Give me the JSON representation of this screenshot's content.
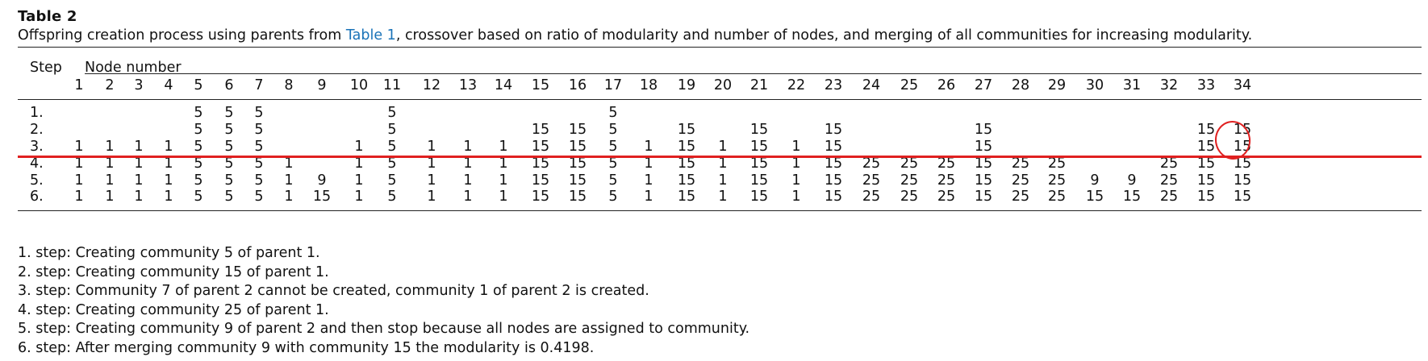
{
  "table": {
    "title": "Table 2",
    "caption_before": "Offspring creation process using parents from ",
    "caption_link": "Table 1",
    "caption_after": ", crossover based on ratio of modularity and number of nodes, and merging of all communities for increasing modularity.",
    "step_header": "Step",
    "node_header": "Node number",
    "columns": [
      "1",
      "2",
      "3",
      "4",
      "5",
      "6",
      "7",
      "8",
      "9",
      "10",
      "11",
      "12",
      "13",
      "14",
      "15",
      "16",
      "17",
      "18",
      "19",
      "20",
      "21",
      "22",
      "23",
      "24",
      "25",
      "26",
      "27",
      "28",
      "29",
      "30",
      "31",
      "32",
      "33",
      "34"
    ],
    "rows": [
      {
        "label": "1.",
        "cells": [
          "",
          "",
          "",
          "",
          "5",
          "5",
          "5",
          "",
          "",
          "",
          "5",
          "",
          "",
          "",
          "",
          "",
          "5",
          "",
          "",
          "",
          "",
          "",
          "",
          "",
          "",
          "",
          "",
          "",
          "",
          "",
          "",
          "",
          "",
          ""
        ]
      },
      {
        "label": "2.",
        "cells": [
          "",
          "",
          "",
          "",
          "5",
          "5",
          "5",
          "",
          "",
          "",
          "5",
          "",
          "",
          "",
          "15",
          "15",
          "5",
          "",
          "15",
          "",
          "15",
          "",
          "15",
          "",
          "",
          "",
          "15",
          "",
          "",
          "",
          "",
          "",
          "15",
          "15"
        ]
      },
      {
        "label": "3.",
        "cells": [
          "1",
          "1",
          "1",
          "1",
          "5",
          "5",
          "5",
          "",
          "",
          "1",
          "5",
          "1",
          "1",
          "1",
          "15",
          "15",
          "5",
          "1",
          "15",
          "1",
          "15",
          "1",
          "15",
          "",
          "",
          "",
          "15",
          "",
          "",
          "",
          "",
          "",
          "15",
          "15"
        ]
      },
      {
        "label": "4.",
        "cells": [
          "1",
          "1",
          "1",
          "1",
          "5",
          "5",
          "5",
          "1",
          "",
          "1",
          "5",
          "1",
          "1",
          "1",
          "15",
          "15",
          "5",
          "1",
          "15",
          "1",
          "15",
          "1",
          "15",
          "25",
          "25",
          "25",
          "15",
          "25",
          "25",
          "",
          "",
          "25",
          "15",
          "15"
        ]
      },
      {
        "label": "5.",
        "cells": [
          "1",
          "1",
          "1",
          "1",
          "5",
          "5",
          "5",
          "1",
          "9",
          "1",
          "5",
          "1",
          "1",
          "1",
          "15",
          "15",
          "5",
          "1",
          "15",
          "1",
          "15",
          "1",
          "15",
          "25",
          "25",
          "25",
          "15",
          "25",
          "25",
          "9",
          "9",
          "25",
          "15",
          "15"
        ]
      },
      {
        "label": "6.",
        "cells": [
          "1",
          "1",
          "1",
          "1",
          "5",
          "5",
          "5",
          "1",
          "15",
          "1",
          "5",
          "1",
          "1",
          "1",
          "15",
          "15",
          "5",
          "1",
          "15",
          "1",
          "15",
          "1",
          "15",
          "25",
          "25",
          "25",
          "15",
          "25",
          "25",
          "15",
          "15",
          "25",
          "15",
          "15"
        ]
      }
    ]
  },
  "footnotes": [
    "1. step: Creating community 5 of parent 1.",
    "2. step: Creating community 15 of parent 1.",
    "3. step: Community 7 of parent 2 cannot be created, community 1 of parent 2 is created.",
    "4. step: Creating community 25 of parent 1.",
    "5. step: Creating community 9 of parent 2 and then stop because all nodes are assigned to community.",
    "6. step: After merging community 9 with community 15 the modularity is 0.4198."
  ],
  "annotation_color": "#e02020",
  "link_color": "#1a73b8"
}
